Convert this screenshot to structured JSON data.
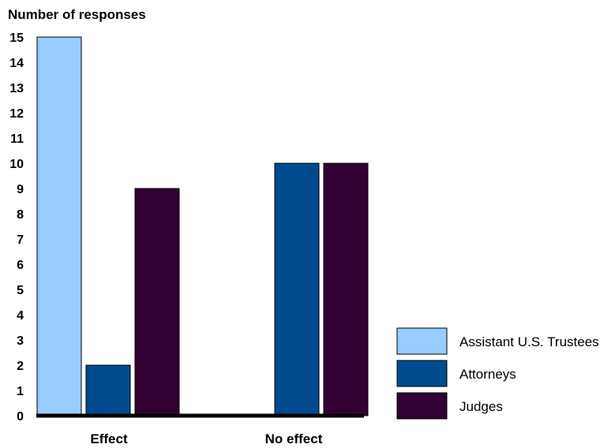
{
  "chart_data": {
    "type": "bar",
    "ylabel": "Number of responses",
    "xlabel": "",
    "ylim": [
      0,
      15
    ],
    "yticks": [
      "0",
      "1",
      "2",
      "3",
      "4",
      "5",
      "6",
      "7",
      "8",
      "9",
      "10",
      "11",
      "12",
      "13",
      "14",
      "15"
    ],
    "categories": [
      "Effect",
      "No effect"
    ],
    "series": [
      {
        "name": "Assistant U.S. Trustees",
        "values": [
          15,
          0
        ],
        "color": "#99ccff"
      },
      {
        "name": "Attorneys",
        "values": [
          2,
          10
        ],
        "color": "#004b8d"
      },
      {
        "name": "Judges",
        "values": [
          9,
          10
        ],
        "color": "#330033"
      }
    ],
    "grid": false,
    "legend": "bottom-right"
  }
}
